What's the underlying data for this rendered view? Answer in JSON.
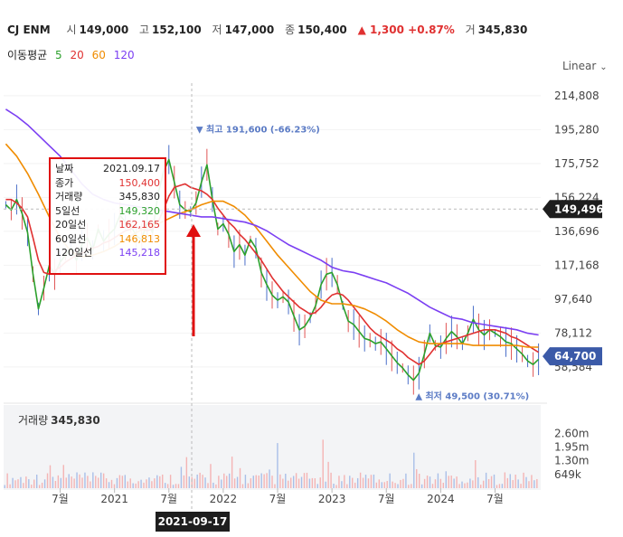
{
  "header": {
    "name": "CJ ENM",
    "open_label": "시",
    "open": "149,000",
    "high_label": "고",
    "high": "152,100",
    "low_label": "저",
    "low": "147,000",
    "close_label": "종",
    "close": "150,400",
    "change": "▲ 1,300 +0.87%",
    "volume_label": "거",
    "volume": "345,830"
  },
  "ma_legend": {
    "label": "이동평균",
    "periods": [
      {
        "value": "5",
        "color": "#2ca02c"
      },
      {
        "value": "20",
        "color": "#e03131"
      },
      {
        "value": "60",
        "color": "#f08c00"
      },
      {
        "value": "120",
        "color": "#7b3ff2"
      }
    ]
  },
  "scale_mode": "Linear",
  "tooltip": {
    "rows": [
      {
        "label": "날짜",
        "value": "2021.09.17",
        "color": "#222222"
      },
      {
        "label": "종가",
        "value": "150,400",
        "color": "#e03131"
      },
      {
        "label": "거래량",
        "value": "345,830",
        "color": "#222222"
      },
      {
        "label": "5일선",
        "value": "149,320",
        "color": "#2ca02c"
      },
      {
        "label": "20일선",
        "value": "162,165",
        "color": "#e03131"
      },
      {
        "label": "60일선",
        "value": "146,813",
        "color": "#f08c00"
      },
      {
        "label": "120일선",
        "value": "145,218",
        "color": "#7b3ff2"
      }
    ]
  },
  "volume_panel": {
    "label": "거래량",
    "value": "345,830"
  },
  "crosshair_date": "2021-09-17",
  "chart_data": {
    "type": "line",
    "price_ylim": [
      45000,
      222000
    ],
    "price_ticks": [
      "214,808",
      "195,280",
      "175,752",
      "156,224",
      "136,696",
      "117,168",
      "97,640",
      "78,112",
      "58,584"
    ],
    "price_tick_values": [
      214808,
      195280,
      175752,
      156224,
      136696,
      117168,
      97640,
      78112,
      58584
    ],
    "volume_ticks": [
      "2.60m",
      "1.95m",
      "1.30m",
      "649k"
    ],
    "volume_tick_values": [
      2600000,
      1950000,
      1300000,
      649000
    ],
    "volume_ylim": [
      0,
      3000000
    ],
    "x_ticks": [
      "7월",
      "2021",
      "7월",
      "2022",
      "7월",
      "2023",
      "7월",
      "2024",
      "7월"
    ],
    "x_tick_values": [
      2020.5,
      2021.0,
      2021.5,
      2022.0,
      2022.5,
      2023.0,
      2023.5,
      2024.0,
      2024.5
    ],
    "xlim": [
      2019.98,
      2024.92
    ],
    "crosshair": {
      "x": 2021.71,
      "price": 149496,
      "price_label": "149,496"
    },
    "last_price": {
      "value": 64700,
      "label": "64,700"
    },
    "annotations": {
      "max": {
        "label": "▼ 최고 191,600 (-66.23%)",
        "x": 2021.85,
        "value": 191600
      },
      "min": {
        "label": "▲ 최저 49,500 (30.71%)",
        "x": 2023.8,
        "value": 49500
      }
    },
    "series": [
      {
        "name": "5",
        "color": "#2ca02c",
        "x": [
          2020.0,
          2020.05,
          2020.1,
          2020.15,
          2020.2,
          2020.25,
          2020.3,
          2020.35,
          2020.4,
          2020.45,
          2020.5,
          2020.55,
          2020.6,
          2020.65,
          2020.7,
          2020.75,
          2020.8,
          2020.85,
          2020.9,
          2020.95,
          2021.0,
          2021.05,
          2021.1,
          2021.15,
          2021.2,
          2021.25,
          2021.3,
          2021.35,
          2021.4,
          2021.45,
          2021.5,
          2021.55,
          2021.6,
          2021.65,
          2021.7,
          2021.75,
          2021.8,
          2021.85,
          2021.9,
          2021.95,
          2022.0,
          2022.05,
          2022.1,
          2022.15,
          2022.2,
          2022.25,
          2022.3,
          2022.35,
          2022.4,
          2022.45,
          2022.5,
          2022.55,
          2022.6,
          2022.65,
          2022.7,
          2022.75,
          2022.8,
          2022.85,
          2022.9,
          2022.95,
          2023.0,
          2023.05,
          2023.1,
          2023.15,
          2023.2,
          2023.25,
          2023.3,
          2023.35,
          2023.4,
          2023.45,
          2023.5,
          2023.55,
          2023.6,
          2023.65,
          2023.7,
          2023.75,
          2023.8,
          2023.85,
          2023.9,
          2023.95,
          2024.0,
          2024.05,
          2024.1,
          2024.15,
          2024.2,
          2024.25,
          2024.3,
          2024.35,
          2024.4,
          2024.45,
          2024.5,
          2024.55,
          2024.6,
          2024.65,
          2024.7,
          2024.75,
          2024.8,
          2024.85,
          2024.9
        ],
        "y": [
          152000,
          149000,
          155000,
          147000,
          136000,
          112000,
          92000,
          104000,
          117000,
          112000,
          119000,
          123000,
          127000,
          120000,
          129000,
          133000,
          126000,
          138000,
          131000,
          135000,
          138000,
          146000,
          142000,
          140000,
          134000,
          132000,
          142000,
          136000,
          158000,
          171000,
          178000,
          165000,
          152000,
          149000,
          148000,
          153000,
          165000,
          175000,
          155000,
          138000,
          141000,
          135000,
          125000,
          129000,
          123000,
          132000,
          127000,
          113000,
          106000,
          100000,
          97000,
          99000,
          96000,
          88000,
          80000,
          82000,
          87000,
          94000,
          106000,
          112000,
          113000,
          106000,
          94000,
          85000,
          83000,
          79000,
          75000,
          74000,
          72000,
          73000,
          69000,
          65000,
          61000,
          58000,
          54000,
          51000,
          55000,
          66000,
          78000,
          71000,
          70000,
          75000,
          79000,
          76000,
          72000,
          78000,
          86000,
          80000,
          77000,
          80000,
          78000,
          76000,
          73000,
          72000,
          69000,
          66000,
          62000,
          60000,
          63000
        ]
      },
      {
        "name": "20",
        "color": "#e03131",
        "x": [
          2020.0,
          2020.05,
          2020.1,
          2020.15,
          2020.2,
          2020.25,
          2020.3,
          2020.35,
          2020.4,
          2020.45,
          2020.5,
          2020.55,
          2020.6,
          2020.65,
          2020.7,
          2020.75,
          2020.8,
          2020.85,
          2020.9,
          2020.95,
          2021.0,
          2021.05,
          2021.1,
          2021.15,
          2021.2,
          2021.25,
          2021.3,
          2021.35,
          2021.4,
          2021.45,
          2021.5,
          2021.55,
          2021.6,
          2021.65,
          2021.7,
          2021.75,
          2021.8,
          2021.85,
          2021.9,
          2021.95,
          2022.0,
          2022.05,
          2022.1,
          2022.15,
          2022.2,
          2022.25,
          2022.3,
          2022.35,
          2022.4,
          2022.45,
          2022.5,
          2022.55,
          2022.6,
          2022.65,
          2022.7,
          2022.75,
          2022.8,
          2022.85,
          2022.9,
          2022.95,
          2023.0,
          2023.05,
          2023.1,
          2023.15,
          2023.2,
          2023.25,
          2023.3,
          2023.35,
          2023.4,
          2023.45,
          2023.5,
          2023.55,
          2023.6,
          2023.65,
          2023.7,
          2023.75,
          2023.8,
          2023.85,
          2023.9,
          2023.95,
          2024.0,
          2024.05,
          2024.1,
          2024.15,
          2024.2,
          2024.25,
          2024.3,
          2024.35,
          2024.4,
          2024.45,
          2024.5,
          2024.55,
          2024.6,
          2024.65,
          2024.7,
          2024.75,
          2024.8,
          2024.85,
          2024.9
        ],
        "y": [
          155000,
          155000,
          153000,
          150000,
          145000,
          133000,
          120000,
          113000,
          112000,
          114000,
          116000,
          119000,
          121000,
          123000,
          124000,
          126000,
          127000,
          128000,
          130000,
          131000,
          133000,
          135000,
          137000,
          138000,
          139000,
          138000,
          137000,
          138000,
          142000,
          149000,
          157000,
          162000,
          163000,
          164000,
          162000,
          161000,
          160000,
          158000,
          155000,
          150000,
          146000,
          142000,
          139000,
          135000,
          132000,
          128000,
          124000,
          120000,
          115000,
          110000,
          106000,
          102000,
          99000,
          96000,
          93000,
          91000,
          89000,
          90000,
          93000,
          97000,
          100000,
          101000,
          100000,
          97000,
          93000,
          89000,
          85000,
          81000,
          78000,
          76000,
          74000,
          72000,
          69000,
          67000,
          64000,
          62000,
          60000,
          62000,
          66000,
          70000,
          72000,
          73000,
          74000,
          75000,
          76000,
          77000,
          78000,
          79000,
          80000,
          80000,
          80000,
          79000,
          78000,
          76000,
          75000,
          73000,
          71000,
          69000,
          67000
        ]
      },
      {
        "name": "60",
        "color": "#f08c00",
        "x": [
          2020.0,
          2020.1,
          2020.2,
          2020.3,
          2020.4,
          2020.5,
          2020.6,
          2020.7,
          2020.8,
          2020.9,
          2021.0,
          2021.1,
          2021.2,
          2021.3,
          2021.4,
          2021.5,
          2021.6,
          2021.7,
          2021.8,
          2021.9,
          2022.0,
          2022.1,
          2022.2,
          2022.3,
          2022.4,
          2022.5,
          2022.6,
          2022.7,
          2022.8,
          2022.9,
          2023.0,
          2023.1,
          2023.2,
          2023.3,
          2023.4,
          2023.5,
          2023.6,
          2023.7,
          2023.8,
          2023.9,
          2024.0,
          2024.1,
          2024.2,
          2024.3,
          2024.4,
          2024.5,
          2024.6,
          2024.7,
          2024.8,
          2024.9
        ],
        "y": [
          187000,
          180000,
          170000,
          158000,
          145000,
          133000,
          125000,
          122000,
          123000,
          125000,
          128000,
          132000,
          136000,
          139000,
          141000,
          144000,
          147000,
          149000,
          152000,
          154000,
          154000,
          151000,
          146000,
          139000,
          131000,
          123000,
          116000,
          109000,
          102000,
          97000,
          95000,
          95000,
          94000,
          92000,
          89000,
          85000,
          80000,
          76000,
          73000,
          72000,
          72000,
          72000,
          72000,
          71000,
          71000,
          71000,
          71000,
          71000,
          70000,
          70000
        ]
      },
      {
        "name": "120",
        "color": "#7b3ff2",
        "x": [
          2020.0,
          2020.1,
          2020.2,
          2020.3,
          2020.4,
          2020.5,
          2020.6,
          2020.7,
          2020.8,
          2020.9,
          2021.0,
          2021.1,
          2021.2,
          2021.3,
          2021.4,
          2021.5,
          2021.6,
          2021.7,
          2021.8,
          2021.9,
          2022.0,
          2022.1,
          2022.2,
          2022.3,
          2022.4,
          2022.5,
          2022.6,
          2022.7,
          2022.8,
          2022.9,
          2023.0,
          2023.1,
          2023.2,
          2023.3,
          2023.4,
          2023.5,
          2023.6,
          2023.7,
          2023.8,
          2023.9,
          2024.0,
          2024.1,
          2024.2,
          2024.3,
          2024.4,
          2024.5,
          2024.6,
          2024.7,
          2024.8,
          2024.9
        ],
        "y": [
          207000,
          203000,
          198000,
          192000,
          186000,
          180000,
          172000,
          164000,
          158000,
          155000,
          153000,
          152000,
          151000,
          150000,
          149000,
          148000,
          147000,
          146000,
          145000,
          145000,
          144000,
          143000,
          142000,
          140000,
          137000,
          133000,
          129000,
          126000,
          123000,
          120000,
          116000,
          114000,
          113000,
          111000,
          109000,
          107000,
          104000,
          101000,
          97000,
          93000,
          90000,
          87000,
          86000,
          84000,
          83000,
          82000,
          81000,
          80000,
          78000,
          77000
        ]
      }
    ]
  }
}
